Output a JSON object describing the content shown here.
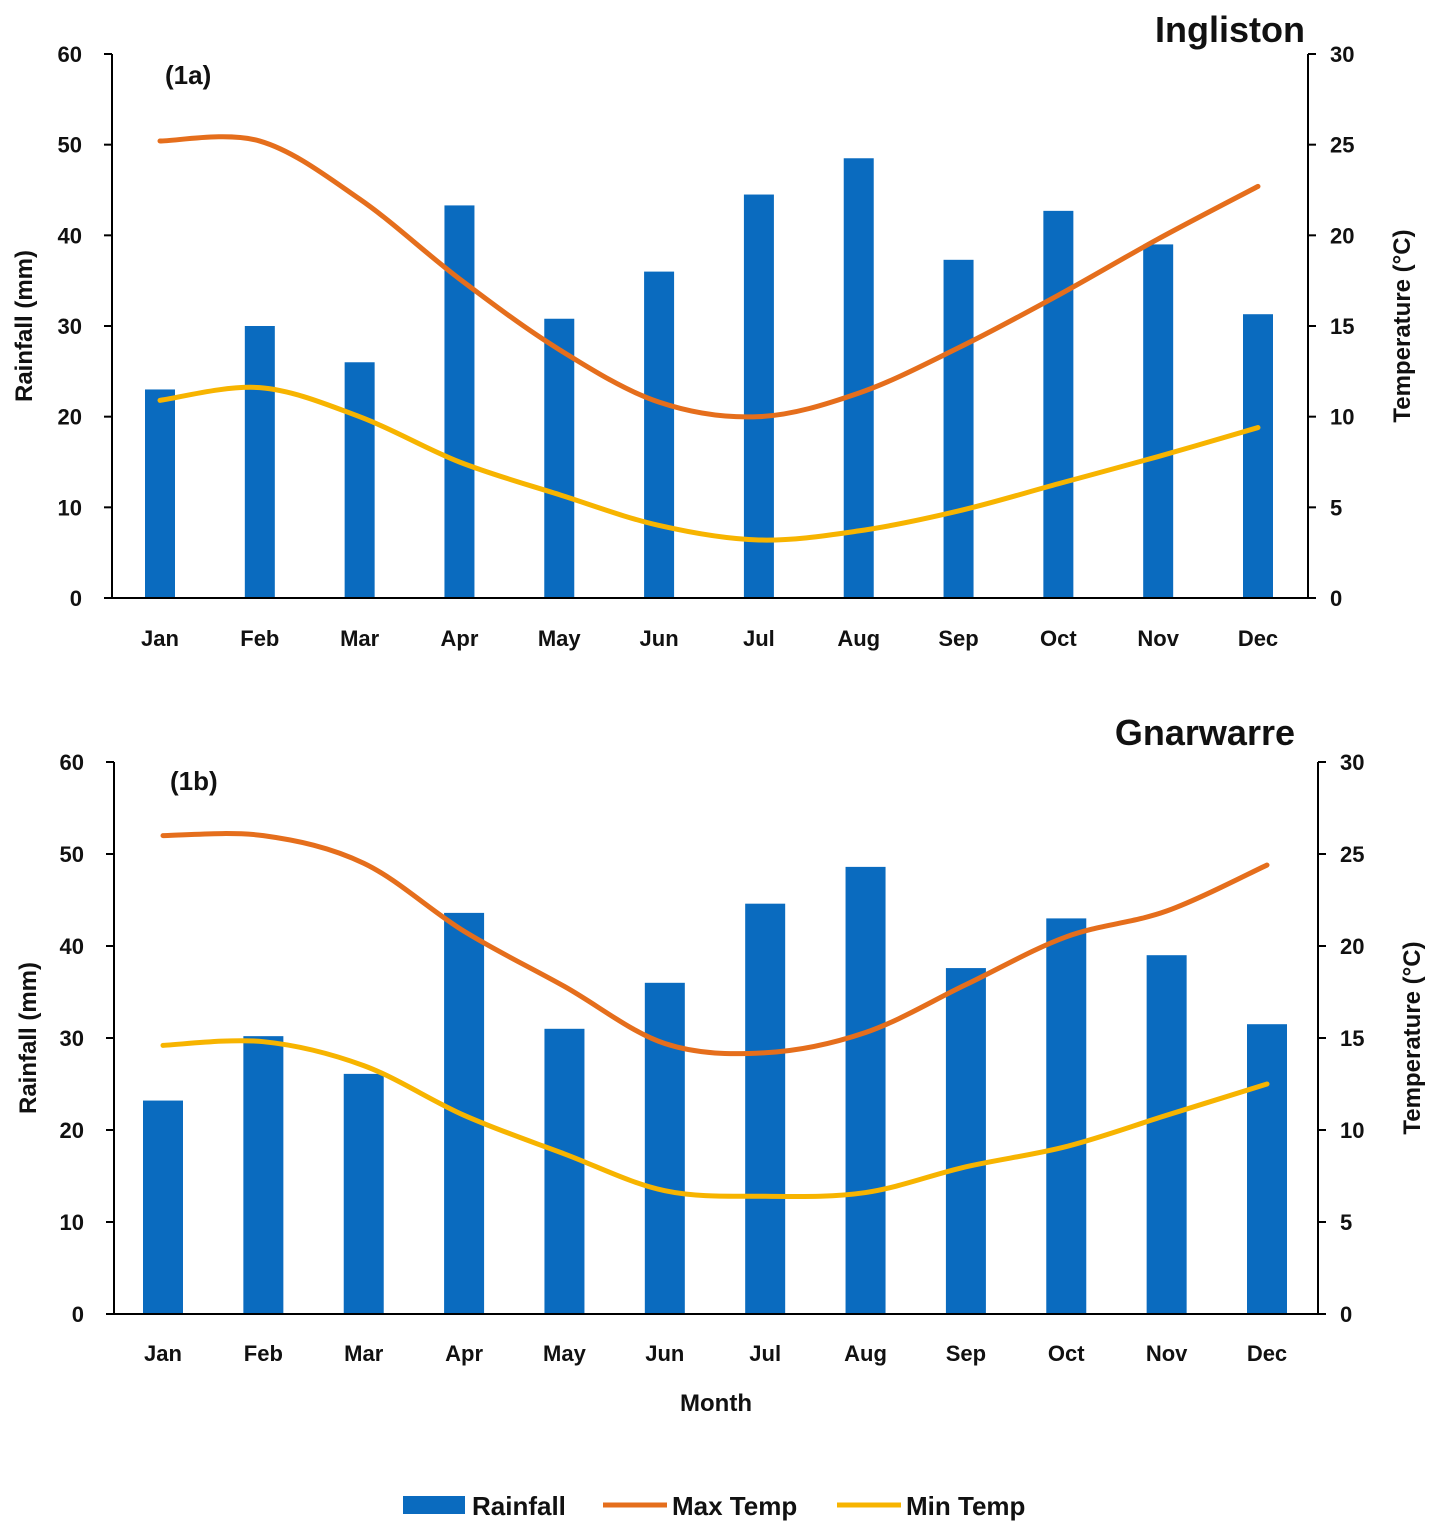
{
  "colors": {
    "rainfall": "#0a6bbf",
    "max_temp": "#e56e1c",
    "min_temp": "#f7b400"
  },
  "legend": [
    {
      "label": "Rainfall",
      "key": "rainfall",
      "shape": "bar"
    },
    {
      "label": "Max Temp",
      "key": "max_temp",
      "shape": "line"
    },
    {
      "label": "Min Temp",
      "key": "min_temp",
      "shape": "line"
    }
  ],
  "chart_data": [
    {
      "type": "bar",
      "title": "Ingliston",
      "panel_label": "(1a)",
      "categories": [
        "Jan",
        "Feb",
        "Mar",
        "Apr",
        "May",
        "Jun",
        "Jul",
        "Aug",
        "Sep",
        "Oct",
        "Nov",
        "Dec"
      ],
      "xlabel": "",
      "ylabel": "Rainfall  (mm)",
      "y2label": "Temperature (°C)",
      "ylim": [
        0,
        60
      ],
      "y2lim": [
        0,
        30
      ],
      "yticks": [
        "0",
        "10",
        "20",
        "30",
        "40",
        "50",
        "60"
      ],
      "y2ticks": [
        "0",
        "5",
        "10",
        "15",
        "20",
        "25",
        "30"
      ],
      "series": [
        {
          "name": "Rainfall",
          "type": "bar",
          "axis": "left",
          "values": [
            23,
            30,
            26,
            43.3,
            30.8,
            36,
            44.5,
            48.5,
            37.3,
            42.7,
            39,
            31.3
          ]
        },
        {
          "name": "Max Temp",
          "type": "line",
          "axis": "right",
          "values": [
            25.2,
            25.2,
            22,
            17.6,
            13.7,
            10.8,
            10,
            11.3,
            13.8,
            16.7,
            19.8,
            22.7
          ]
        },
        {
          "name": "Min Temp",
          "type": "line",
          "axis": "right",
          "values": [
            10.9,
            11.6,
            10,
            7.5,
            5.7,
            4,
            3.2,
            3.7,
            4.8,
            6.3,
            7.8,
            9.4
          ]
        }
      ],
      "grid": false
    },
    {
      "type": "bar",
      "title": "Gnarwarre",
      "panel_label": "(1b)",
      "categories": [
        "Jan",
        "Feb",
        "Mar",
        "Apr",
        "May",
        "Jun",
        "Jul",
        "Aug",
        "Sep",
        "Oct",
        "Nov",
        "Dec"
      ],
      "xlabel": "Month",
      "ylabel": "Rainfall  (mm)",
      "y2label": "Temperature (°C)",
      "ylim": [
        0,
        60
      ],
      "y2lim": [
        0,
        30
      ],
      "yticks": [
        "0",
        "10",
        "20",
        "30",
        "40",
        "50",
        "60"
      ],
      "y2ticks": [
        "0",
        "5",
        "10",
        "15",
        "20",
        "25",
        "30"
      ],
      "series": [
        {
          "name": "Rainfall",
          "type": "bar",
          "axis": "left",
          "values": [
            23.2,
            30.2,
            26.1,
            43.6,
            31,
            36,
            44.6,
            48.6,
            37.6,
            43,
            39,
            31.5
          ]
        },
        {
          "name": "Max Temp",
          "type": "line",
          "axis": "right",
          "values": [
            26,
            26,
            24.5,
            20.8,
            17.8,
            14.7,
            14.2,
            15.3,
            17.9,
            20.5,
            21.9,
            24.4
          ]
        },
        {
          "name": "Min Temp",
          "type": "line",
          "axis": "right",
          "values": [
            14.6,
            14.8,
            13.5,
            10.8,
            8.7,
            6.7,
            6.4,
            6.6,
            8,
            9.1,
            10.8,
            12.5
          ]
        }
      ],
      "grid": false
    }
  ]
}
